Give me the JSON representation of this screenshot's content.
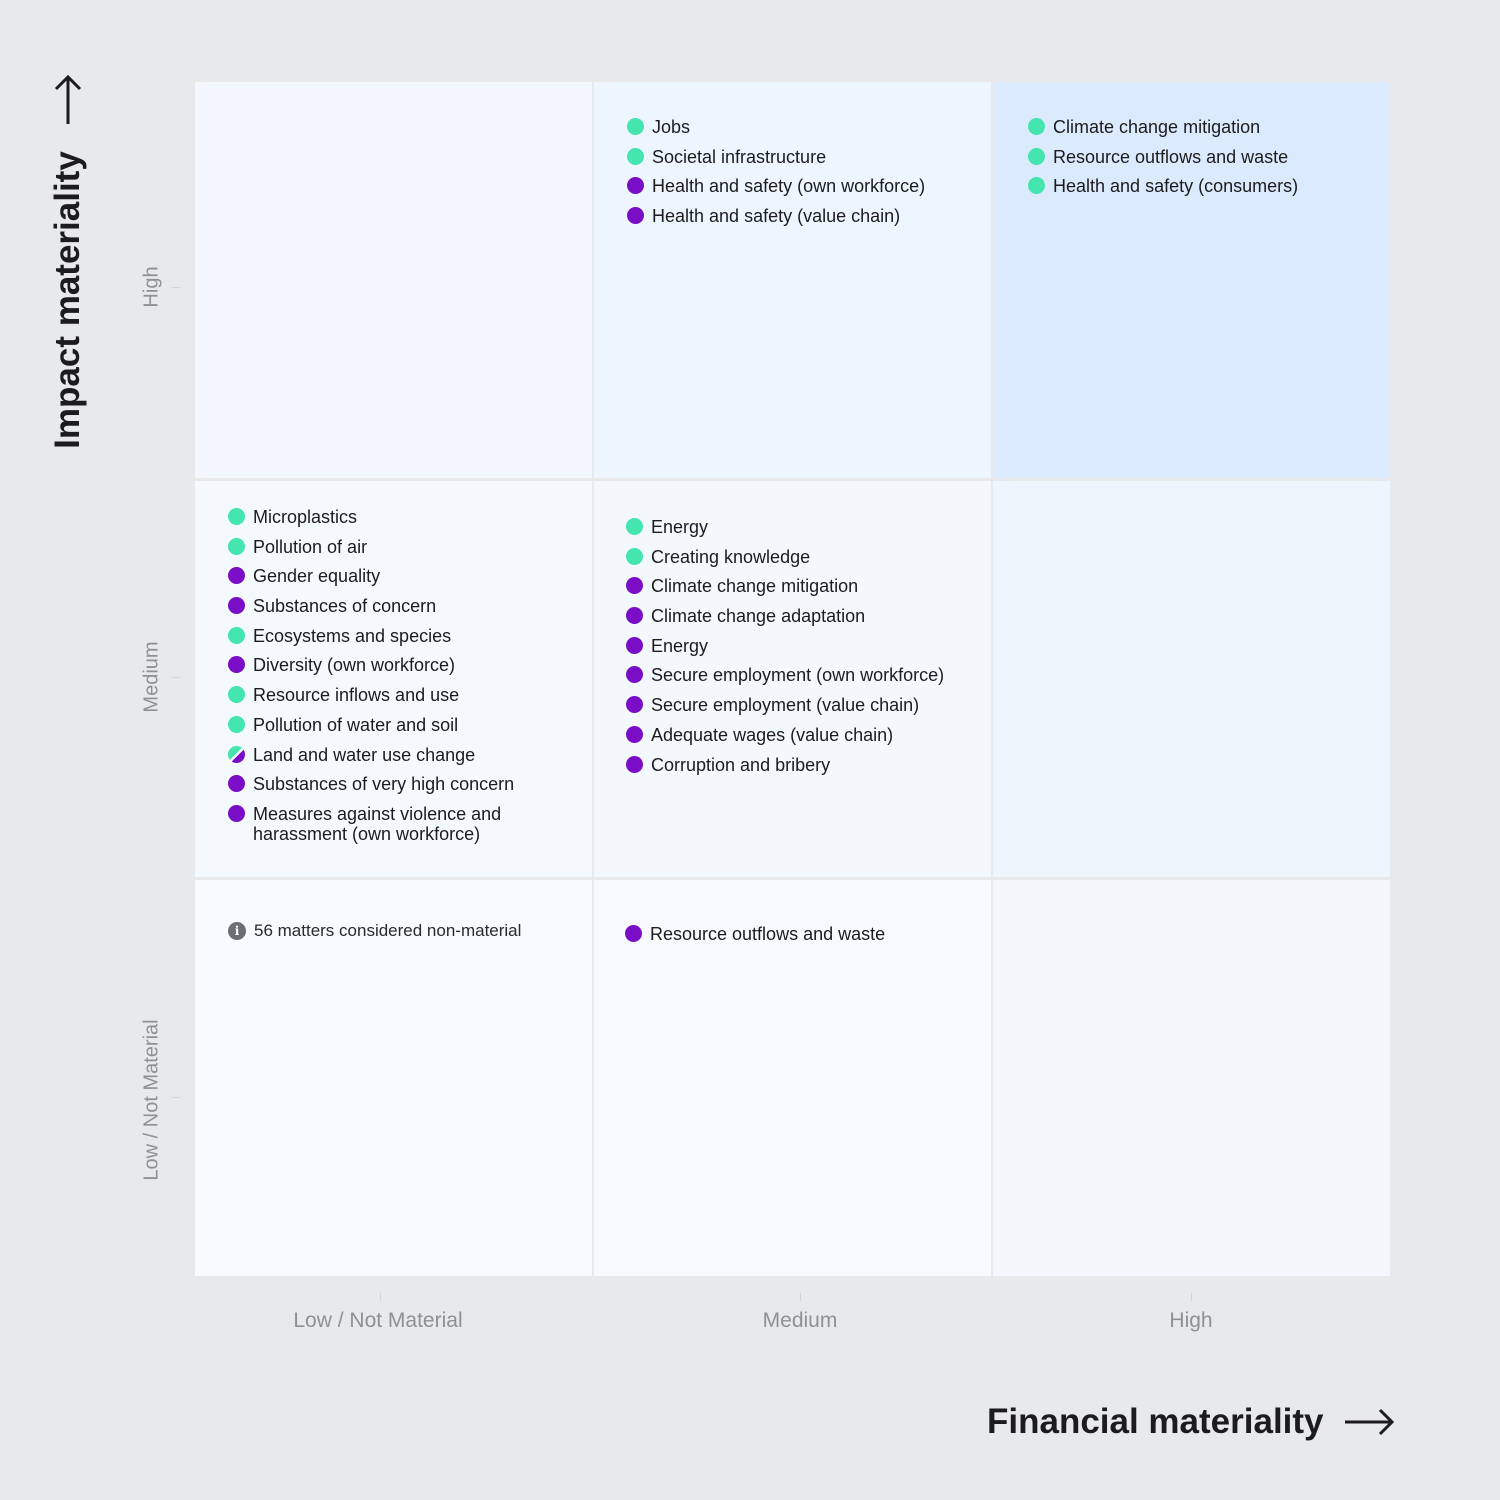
{
  "axes": {
    "y_title": "Impact materiality",
    "x_title": "Financial materiality",
    "y_levels": [
      "High",
      "Medium",
      "Low / Not Material"
    ],
    "x_levels": [
      "Low / Not Material",
      "Medium",
      "High"
    ]
  },
  "colors": {
    "financial_dot": "#45e5b0",
    "impact_dot": "#7a0ec6",
    "background": "#e8e9ea",
    "highlight_cell": "#dbeafc"
  },
  "cells": {
    "high_medium": [
      {
        "label": "Jobs",
        "type": "financial"
      },
      {
        "label": "Societal infrastructure",
        "type": "financial"
      },
      {
        "label": "Health and safety (own workforce)",
        "type": "impact"
      },
      {
        "label": "Health and safety (value chain)",
        "type": "impact"
      }
    ],
    "high_high": [
      {
        "label": "Climate change mitigation",
        "type": "financial"
      },
      {
        "label": "Resource outflows and waste",
        "type": "financial"
      },
      {
        "label": "Health and safety (consumers)",
        "type": "financial"
      }
    ],
    "medium_low": [
      {
        "label": "Microplastics",
        "type": "financial"
      },
      {
        "label": "Pollution of air",
        "type": "financial"
      },
      {
        "label": "Gender equality",
        "type": "impact"
      },
      {
        "label": "Substances of concern",
        "type": "impact"
      },
      {
        "label": "Ecosystems and species",
        "type": "financial"
      },
      {
        "label": "Diversity (own workforce)",
        "type": "impact"
      },
      {
        "label": "Resource inflows and use",
        "type": "financial"
      },
      {
        "label": "Pollution of water and soil",
        "type": "financial"
      },
      {
        "label": "Land and water use change",
        "type": "both"
      },
      {
        "label": "Substances of very high concern",
        "type": "impact"
      },
      {
        "label": "Measures against violence and harassment (own workforce)",
        "type": "impact"
      }
    ],
    "medium_medium": [
      {
        "label": "Energy",
        "type": "financial"
      },
      {
        "label": "Creating knowledge",
        "type": "financial"
      },
      {
        "label": "Climate change mitigation",
        "type": "impact"
      },
      {
        "label": "Climate change adaptation",
        "type": "impact"
      },
      {
        "label": "Energy",
        "type": "impact"
      },
      {
        "label": "Secure employment (own workforce)",
        "type": "impact"
      },
      {
        "label": "Secure employment (value chain)",
        "type": "impact"
      },
      {
        "label": "Adequate wages (value chain)",
        "type": "impact"
      },
      {
        "label": "Corruption and bribery",
        "type": "impact"
      }
    ],
    "low_low_note": "56 matters considered non-material",
    "low_medium": [
      {
        "label": "Resource outflows and waste",
        "type": "impact"
      }
    ]
  },
  "icons": {
    "y_arrow": "arrow-up-icon",
    "x_arrow": "arrow-right-icon",
    "note": "info-icon"
  }
}
